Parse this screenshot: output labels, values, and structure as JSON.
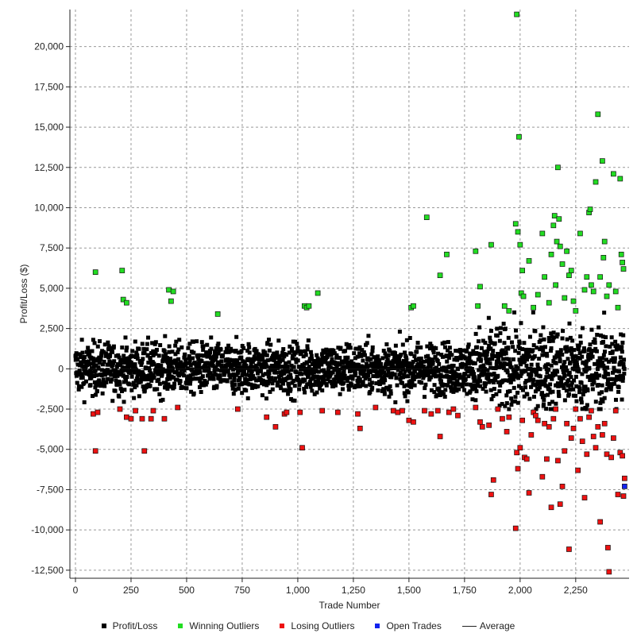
{
  "chart_data": {
    "type": "scatter",
    "xlabel": "Trade Number",
    "ylabel": "Profit/Loss ($)",
    "xlim": [
      -25,
      2490
    ],
    "ylim": [
      -13000,
      22300
    ],
    "x_ticks": [
      0,
      250,
      500,
      750,
      1000,
      1250,
      1500,
      1750,
      2000,
      2250
    ],
    "x_tick_labels": [
      "0",
      "250",
      "500",
      "750",
      "1,000",
      "1,250",
      "1,500",
      "1,750",
      "2,000",
      "2,250"
    ],
    "y_ticks": [
      -12500,
      -10000,
      -7500,
      -5000,
      -2500,
      0,
      2500,
      5000,
      7500,
      10000,
      12500,
      15000,
      17500,
      20000
    ],
    "y_tick_labels": [
      "-12,500",
      "-10,000",
      "-7,500",
      "-5,000",
      "-2,500",
      "0",
      "2,500",
      "5,000",
      "7,500",
      "10,000",
      "12,500",
      "15,000",
      "17,500",
      "20,000"
    ],
    "grid": true,
    "legend_position": "bottom",
    "colors": {
      "profit_loss": "#000000",
      "winning_outliers": "#22dd22",
      "losing_outliers": "#ee1111",
      "open_trades": "#1122ee",
      "average": "#222222"
    },
    "series": [
      {
        "name": "Winning Outliers",
        "points": [
          [
            90,
            6000
          ],
          [
            210,
            6100
          ],
          [
            215,
            4300
          ],
          [
            230,
            4100
          ],
          [
            420,
            4900
          ],
          [
            430,
            4200
          ],
          [
            440,
            4800
          ],
          [
            640,
            3400
          ],
          [
            1030,
            3900
          ],
          [
            1040,
            3800
          ],
          [
            1050,
            3900
          ],
          [
            1090,
            4700
          ],
          [
            1510,
            3800
          ],
          [
            1520,
            3900
          ],
          [
            1580,
            9400
          ],
          [
            1640,
            5800
          ],
          [
            1670,
            7100
          ],
          [
            1800,
            7300
          ],
          [
            1810,
            3900
          ],
          [
            1820,
            5100
          ],
          [
            1870,
            7700
          ],
          [
            1930,
            3900
          ],
          [
            1950,
            3600
          ],
          [
            1980,
            9000
          ],
          [
            1985,
            22000
          ],
          [
            1990,
            8500
          ],
          [
            1995,
            14400
          ],
          [
            2000,
            7700
          ],
          [
            2005,
            4700
          ],
          [
            2010,
            6100
          ],
          [
            2015,
            4500
          ],
          [
            2040,
            6700
          ],
          [
            2060,
            3800
          ],
          [
            2080,
            4600
          ],
          [
            2100,
            8400
          ],
          [
            2110,
            5700
          ],
          [
            2130,
            4100
          ],
          [
            2140,
            7100
          ],
          [
            2150,
            8900
          ],
          [
            2155,
            9500
          ],
          [
            2160,
            5200
          ],
          [
            2165,
            7900
          ],
          [
            2170,
            12500
          ],
          [
            2175,
            9300
          ],
          [
            2180,
            7600
          ],
          [
            2190,
            6500
          ],
          [
            2200,
            4400
          ],
          [
            2210,
            7300
          ],
          [
            2220,
            5800
          ],
          [
            2230,
            6100
          ],
          [
            2240,
            4200
          ],
          [
            2250,
            3600
          ],
          [
            2270,
            8400
          ],
          [
            2290,
            4900
          ],
          [
            2300,
            5700
          ],
          [
            2310,
            9700
          ],
          [
            2315,
            9900
          ],
          [
            2320,
            5200
          ],
          [
            2330,
            4800
          ],
          [
            2340,
            11600
          ],
          [
            2350,
            15800
          ],
          [
            2360,
            5700
          ],
          [
            2370,
            12900
          ],
          [
            2375,
            6900
          ],
          [
            2380,
            7900
          ],
          [
            2390,
            4500
          ],
          [
            2400,
            5200
          ],
          [
            2420,
            12100
          ],
          [
            2430,
            4800
          ],
          [
            2440,
            3800
          ],
          [
            2450,
            11800
          ],
          [
            2455,
            7100
          ],
          [
            2460,
            6600
          ],
          [
            2465,
            6200
          ]
        ]
      },
      {
        "name": "Losing Outliers",
        "points": [
          [
            80,
            -2800
          ],
          [
            90,
            -5100
          ],
          [
            100,
            -2700
          ],
          [
            200,
            -2500
          ],
          [
            230,
            -3000
          ],
          [
            250,
            -3100
          ],
          [
            270,
            -2600
          ],
          [
            300,
            -3100
          ],
          [
            310,
            -5100
          ],
          [
            340,
            -3100
          ],
          [
            350,
            -2600
          ],
          [
            400,
            -3100
          ],
          [
            460,
            -2400
          ],
          [
            730,
            -2500
          ],
          [
            860,
            -3000
          ],
          [
            900,
            -3600
          ],
          [
            940,
            -2800
          ],
          [
            950,
            -2700
          ],
          [
            1010,
            -2700
          ],
          [
            1020,
            -4900
          ],
          [
            1110,
            -2600
          ],
          [
            1180,
            -2700
          ],
          [
            1270,
            -2800
          ],
          [
            1280,
            -3700
          ],
          [
            1350,
            -2400
          ],
          [
            1430,
            -2600
          ],
          [
            1450,
            -2700
          ],
          [
            1470,
            -2600
          ],
          [
            1500,
            -3200
          ],
          [
            1520,
            -3300
          ],
          [
            1570,
            -2600
          ],
          [
            1600,
            -2800
          ],
          [
            1630,
            -2600
          ],
          [
            1640,
            -4200
          ],
          [
            1680,
            -2700
          ],
          [
            1700,
            -2500
          ],
          [
            1720,
            -2900
          ],
          [
            1800,
            -2400
          ],
          [
            1820,
            -3300
          ],
          [
            1830,
            -3600
          ],
          [
            1860,
            -3500
          ],
          [
            1870,
            -7800
          ],
          [
            1880,
            -6900
          ],
          [
            1900,
            -2500
          ],
          [
            1920,
            -3100
          ],
          [
            1940,
            -3900
          ],
          [
            1950,
            -3000
          ],
          [
            1980,
            -9900
          ],
          [
            1985,
            -5200
          ],
          [
            1990,
            -6200
          ],
          [
            2000,
            -4900
          ],
          [
            2010,
            -3200
          ],
          [
            2020,
            -5500
          ],
          [
            2030,
            -5600
          ],
          [
            2040,
            -7700
          ],
          [
            2050,
            -4100
          ],
          [
            2060,
            -2700
          ],
          [
            2070,
            -2900
          ],
          [
            2080,
            -3200
          ],
          [
            2100,
            -6700
          ],
          [
            2110,
            -3400
          ],
          [
            2120,
            -5600
          ],
          [
            2130,
            -3600
          ],
          [
            2140,
            -8600
          ],
          [
            2150,
            -3100
          ],
          [
            2160,
            -2500
          ],
          [
            2170,
            -5700
          ],
          [
            2180,
            -8400
          ],
          [
            2190,
            -7300
          ],
          [
            2200,
            -5100
          ],
          [
            2210,
            -3400
          ],
          [
            2220,
            -11200
          ],
          [
            2230,
            -4300
          ],
          [
            2240,
            -3700
          ],
          [
            2250,
            -2500
          ],
          [
            2260,
            -6300
          ],
          [
            2270,
            -3100
          ],
          [
            2280,
            -4500
          ],
          [
            2290,
            -8000
          ],
          [
            2300,
            -5300
          ],
          [
            2310,
            -3000
          ],
          [
            2320,
            -2600
          ],
          [
            2330,
            -4200
          ],
          [
            2340,
            -4900
          ],
          [
            2350,
            -3600
          ],
          [
            2360,
            -9500
          ],
          [
            2370,
            -4100
          ],
          [
            2380,
            -3400
          ],
          [
            2390,
            -5300
          ],
          [
            2395,
            -11100
          ],
          [
            2400,
            -12600
          ],
          [
            2410,
            -5500
          ],
          [
            2420,
            -4300
          ],
          [
            2430,
            -2600
          ],
          [
            2440,
            -7800
          ],
          [
            2450,
            -5200
          ],
          [
            2460,
            -5400
          ],
          [
            2465,
            -7900
          ],
          [
            2470,
            -6800
          ]
        ]
      },
      {
        "name": "Open Trades",
        "points": [
          [
            2470,
            -7300
          ]
        ]
      },
      {
        "name": "Profit/Loss",
        "generated_count": 2470,
        "typical_range": [
          -2500,
          3500
        ]
      }
    ]
  },
  "legend": {
    "items": [
      {
        "label": "Profit/Loss",
        "color": "#000000"
      },
      {
        "label": "Winning Outliers",
        "color": "#22dd22"
      },
      {
        "label": "Losing Outliers",
        "color": "#ee1111"
      },
      {
        "label": "Open Trades",
        "color": "#1122ee"
      },
      {
        "label": "Average",
        "color": "#222222"
      }
    ]
  }
}
